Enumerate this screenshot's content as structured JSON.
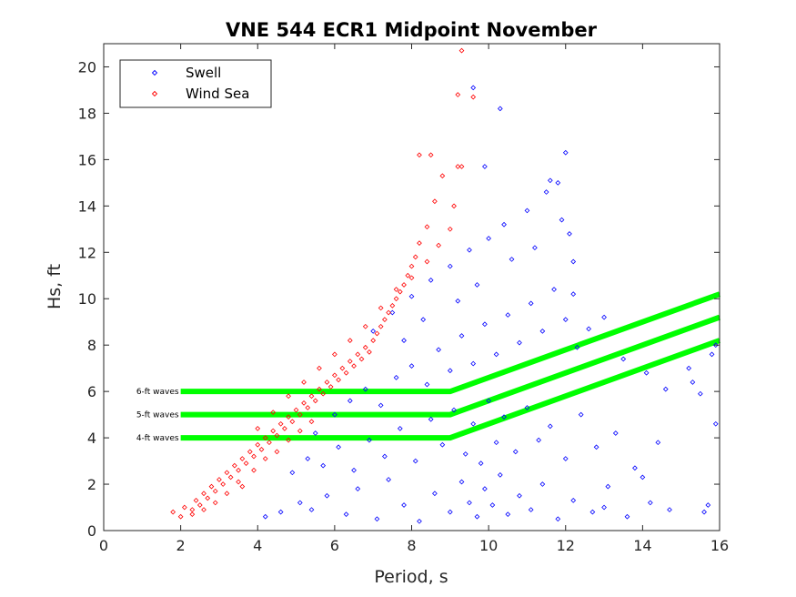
{
  "chart_data": {
    "type": "scatter",
    "title": "VNE 544 ECR1 Midpoint November",
    "xlabel": "Period, s",
    "ylabel": "Hs, ft",
    "xlim": [
      0,
      16
    ],
    "ylim": [
      0,
      21
    ],
    "xticks": [
      "0",
      "2",
      "4",
      "6",
      "8",
      "10",
      "12",
      "14",
      "16"
    ],
    "yticks": [
      "0",
      "2",
      "4",
      "6",
      "8",
      "10",
      "12",
      "14",
      "16",
      "18",
      "20"
    ],
    "legend_position": "top-left",
    "series": [
      {
        "name": "Swell",
        "color": "#0000ff",
        "marker": "diamond-open",
        "points": [
          [
            4.2,
            0.6
          ],
          [
            4.6,
            0.8
          ],
          [
            5.1,
            1.2
          ],
          [
            5.4,
            0.9
          ],
          [
            5.8,
            1.5
          ],
          [
            6.3,
            0.7
          ],
          [
            6.6,
            1.8
          ],
          [
            7.1,
            0.5
          ],
          [
            7.4,
            2.2
          ],
          [
            7.8,
            1.1
          ],
          [
            8.2,
            0.4
          ],
          [
            8.6,
            1.6
          ],
          [
            9.0,
            0.8
          ],
          [
            9.3,
            2.1
          ],
          [
            9.5,
            1.2
          ],
          [
            9.7,
            0.6
          ],
          [
            9.9,
            1.8
          ],
          [
            10.1,
            1.1
          ],
          [
            10.3,
            2.4
          ],
          [
            10.5,
            0.7
          ],
          [
            10.8,
            1.5
          ],
          [
            11.1,
            0.9
          ],
          [
            11.4,
            2.0
          ],
          [
            11.8,
            0.5
          ],
          [
            12.2,
            1.3
          ],
          [
            12.7,
            0.8
          ],
          [
            13.1,
            1.9
          ],
          [
            13.6,
            0.6
          ],
          [
            14.2,
            1.2
          ],
          [
            14.7,
            0.9
          ],
          [
            15.6,
            0.8
          ],
          [
            15.7,
            1.1
          ],
          [
            4.9,
            2.5
          ],
          [
            5.3,
            3.1
          ],
          [
            5.7,
            2.8
          ],
          [
            6.1,
            3.6
          ],
          [
            6.5,
            2.6
          ],
          [
            6.9,
            3.9
          ],
          [
            7.3,
            3.2
          ],
          [
            7.7,
            4.4
          ],
          [
            8.1,
            3.0
          ],
          [
            8.5,
            4.8
          ],
          [
            8.8,
            3.7
          ],
          [
            9.1,
            5.2
          ],
          [
            9.4,
            3.3
          ],
          [
            9.6,
            4.6
          ],
          [
            9.8,
            2.9
          ],
          [
            10.0,
            5.6
          ],
          [
            10.2,
            3.8
          ],
          [
            10.4,
            4.9
          ],
          [
            10.7,
            3.4
          ],
          [
            11.0,
            5.3
          ],
          [
            11.3,
            3.9
          ],
          [
            11.6,
            4.5
          ],
          [
            12.0,
            3.1
          ],
          [
            12.4,
            5.0
          ],
          [
            12.8,
            3.6
          ],
          [
            13.3,
            4.2
          ],
          [
            13.8,
            2.7
          ],
          [
            14.4,
            3.8
          ],
          [
            5.5,
            4.2
          ],
          [
            6.0,
            5.0
          ],
          [
            6.4,
            5.6
          ],
          [
            6.8,
            6.1
          ],
          [
            7.2,
            5.4
          ],
          [
            7.6,
            6.6
          ],
          [
            8.0,
            7.1
          ],
          [
            8.4,
            6.3
          ],
          [
            8.7,
            7.8
          ],
          [
            9.0,
            6.9
          ],
          [
            9.3,
            8.4
          ],
          [
            9.6,
            7.2
          ],
          [
            9.9,
            8.9
          ],
          [
            10.2,
            7.6
          ],
          [
            10.5,
            9.3
          ],
          [
            10.8,
            8.1
          ],
          [
            11.1,
            9.8
          ],
          [
            11.4,
            8.6
          ],
          [
            11.7,
            10.4
          ],
          [
            12.0,
            9.1
          ],
          [
            12.3,
            7.9
          ],
          [
            12.6,
            8.7
          ],
          [
            13.0,
            9.2
          ],
          [
            13.5,
            7.4
          ],
          [
            14.1,
            6.8
          ],
          [
            14.6,
            6.1
          ],
          [
            15.2,
            7.0
          ],
          [
            15.8,
            7.6
          ],
          [
            15.9,
            8.0
          ],
          [
            15.5,
            5.9
          ],
          [
            7.0,
            8.6
          ],
          [
            7.5,
            9.4
          ],
          [
            8.0,
            10.1
          ],
          [
            8.5,
            10.8
          ],
          [
            9.0,
            11.4
          ],
          [
            9.5,
            12.1
          ],
          [
            10.0,
            12.6
          ],
          [
            10.4,
            13.2
          ],
          [
            11.0,
            13.8
          ],
          [
            11.5,
            14.6
          ],
          [
            11.8,
            15.0
          ],
          [
            12.0,
            16.3
          ],
          [
            11.9,
            13.4
          ],
          [
            12.1,
            12.8
          ],
          [
            11.2,
            12.2
          ],
          [
            10.6,
            11.7
          ],
          [
            9.7,
            10.6
          ],
          [
            9.2,
            9.9
          ],
          [
            8.3,
            9.1
          ],
          [
            7.8,
            8.2
          ],
          [
            10.3,
            18.2
          ],
          [
            9.6,
            19.1
          ],
          [
            9.9,
            15.7
          ],
          [
            11.6,
            15.1
          ],
          [
            12.2,
            11.6
          ],
          [
            12.2,
            10.2
          ],
          [
            15.9,
            4.6
          ],
          [
            15.3,
            6.4
          ],
          [
            14.0,
            2.3
          ],
          [
            13.0,
            1.0
          ]
        ]
      },
      {
        "name": "Wind Sea",
        "color": "#ff0000",
        "marker": "diamond-open",
        "points": [
          [
            1.8,
            0.8
          ],
          [
            2.0,
            0.6
          ],
          [
            2.1,
            1.0
          ],
          [
            2.3,
            0.9
          ],
          [
            2.4,
            1.3
          ],
          [
            2.5,
            1.1
          ],
          [
            2.6,
            1.6
          ],
          [
            2.7,
            1.4
          ],
          [
            2.8,
            1.9
          ],
          [
            2.9,
            1.7
          ],
          [
            3.0,
            2.2
          ],
          [
            3.1,
            2.0
          ],
          [
            3.2,
            2.5
          ],
          [
            3.3,
            2.3
          ],
          [
            3.4,
            2.8
          ],
          [
            3.5,
            2.6
          ],
          [
            3.6,
            3.1
          ],
          [
            3.7,
            2.9
          ],
          [
            3.8,
            3.4
          ],
          [
            3.9,
            3.2
          ],
          [
            4.0,
            3.7
          ],
          [
            4.1,
            3.5
          ],
          [
            4.2,
            4.0
          ],
          [
            4.3,
            3.8
          ],
          [
            4.4,
            4.3
          ],
          [
            4.5,
            4.1
          ],
          [
            4.6,
            4.6
          ],
          [
            4.7,
            4.4
          ],
          [
            4.8,
            4.9
          ],
          [
            4.9,
            4.7
          ],
          [
            5.0,
            5.2
          ],
          [
            5.1,
            5.0
          ],
          [
            5.2,
            5.5
          ],
          [
            5.3,
            5.3
          ],
          [
            5.4,
            5.8
          ],
          [
            5.5,
            5.6
          ],
          [
            5.6,
            6.1
          ],
          [
            5.7,
            5.9
          ],
          [
            5.8,
            6.4
          ],
          [
            5.9,
            6.2
          ],
          [
            6.0,
            6.7
          ],
          [
            6.1,
            6.5
          ],
          [
            6.2,
            7.0
          ],
          [
            6.3,
            6.8
          ],
          [
            6.4,
            7.3
          ],
          [
            6.5,
            7.1
          ],
          [
            6.6,
            7.6
          ],
          [
            6.7,
            7.4
          ],
          [
            6.8,
            7.9
          ],
          [
            6.9,
            7.7
          ],
          [
            7.0,
            8.2
          ],
          [
            7.1,
            8.5
          ],
          [
            7.2,
            8.8
          ],
          [
            7.3,
            9.1
          ],
          [
            7.4,
            9.4
          ],
          [
            7.5,
            9.7
          ],
          [
            7.6,
            10.0
          ],
          [
            7.7,
            10.3
          ],
          [
            7.8,
            10.6
          ],
          [
            7.9,
            11.0
          ],
          [
            8.0,
            11.4
          ],
          [
            8.1,
            11.8
          ],
          [
            8.2,
            12.4
          ],
          [
            8.4,
            13.1
          ],
          [
            8.6,
            14.2
          ],
          [
            8.8,
            15.3
          ],
          [
            8.2,
            16.2
          ],
          [
            8.5,
            16.2
          ],
          [
            9.2,
            15.7
          ],
          [
            9.3,
            15.7
          ],
          [
            9.2,
            18.8
          ],
          [
            9.3,
            20.7
          ],
          [
            9.6,
            18.7
          ],
          [
            3.6,
            1.9
          ],
          [
            3.9,
            2.6
          ],
          [
            4.2,
            3.1
          ],
          [
            4.5,
            3.4
          ],
          [
            4.8,
            3.9
          ],
          [
            5.1,
            4.3
          ],
          [
            5.4,
            4.7
          ],
          [
            3.2,
            1.6
          ],
          [
            3.5,
            2.1
          ],
          [
            2.9,
            1.2
          ],
          [
            2.6,
            0.9
          ],
          [
            2.3,
            0.7
          ],
          [
            4.0,
            4.4
          ],
          [
            4.4,
            5.1
          ],
          [
            4.8,
            5.8
          ],
          [
            5.2,
            6.4
          ],
          [
            5.6,
            7.0
          ],
          [
            6.0,
            7.6
          ],
          [
            6.4,
            8.2
          ],
          [
            6.8,
            8.8
          ],
          [
            7.2,
            9.6
          ],
          [
            7.6,
            10.4
          ],
          [
            8.0,
            10.9
          ],
          [
            8.4,
            11.6
          ],
          [
            8.7,
            12.3
          ],
          [
            9.0,
            13.0
          ],
          [
            9.1,
            14.0
          ]
        ]
      }
    ],
    "reference_lines": [
      {
        "label": "6-ft waves",
        "color": "#00ff00",
        "points": [
          [
            2,
            6
          ],
          [
            9,
            6
          ],
          [
            16,
            10.2
          ]
        ]
      },
      {
        "label": "5-ft waves",
        "color": "#00ff00",
        "points": [
          [
            2,
            5
          ],
          [
            9,
            5
          ],
          [
            16,
            9.2
          ]
        ]
      },
      {
        "label": "4-ft waves",
        "color": "#00ff00",
        "points": [
          [
            2,
            4
          ],
          [
            9,
            4
          ],
          [
            16,
            8.2
          ]
        ]
      }
    ]
  }
}
